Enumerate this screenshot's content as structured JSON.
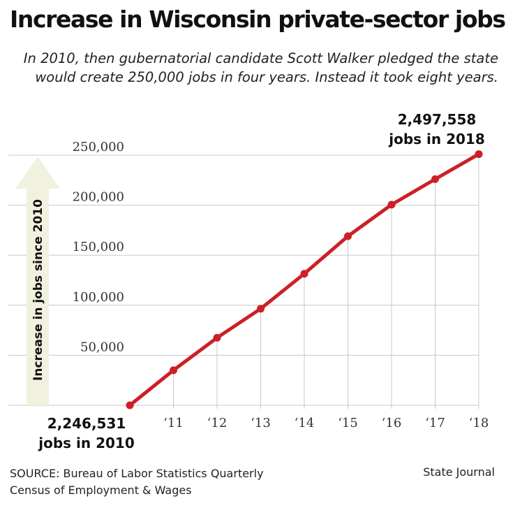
{
  "header": {
    "title": "Increase in Wisconsin private-sector jobs",
    "subtitle_line1": "In 2010, then gubernatorial candidate Scott Walker pledged the state",
    "subtitle_line2": "would create 250,000 jobs in four years. Instead it took eight years."
  },
  "footer": {
    "source_line1": "SOURCE: Bureau of Labor Statistics Quarterly",
    "source_line2": "Census of Employment & Wages",
    "credit": "State Journal"
  },
  "annotations": {
    "start_value": "2,246,531",
    "start_label": "jobs in 2010",
    "end_value": "2,497,558",
    "end_label": "jobs in 2018"
  },
  "chart_data": {
    "type": "line",
    "title": "Increase in Wisconsin private-sector jobs",
    "ylabel": "Increase in jobs since 2010",
    "xlabel": "",
    "x": [
      "2010",
      "‘11",
      "‘12",
      "‘13",
      "‘14",
      "‘15",
      "‘16",
      "‘17",
      "‘18"
    ],
    "x_tick_labels": [
      "‘11",
      "‘12",
      "‘13",
      "‘14",
      "‘15",
      "‘16",
      "‘17",
      "‘18"
    ],
    "y_ticks": [
      50000,
      100000,
      150000,
      200000,
      250000
    ],
    "y_tick_labels": [
      "50,000",
      "100,000",
      "150,000",
      "200,000",
      "250,000"
    ],
    "ylim": [
      0,
      250000
    ],
    "grid": true,
    "series": [
      {
        "values": [
          0,
          35000,
          67500,
          96500,
          131500,
          169000,
          200500,
          226000,
          251000
        ]
      }
    ],
    "colors": {
      "line": "#cc2027",
      "arrow": "#f1f1df",
      "grid": "#c8c8c8"
    }
  }
}
